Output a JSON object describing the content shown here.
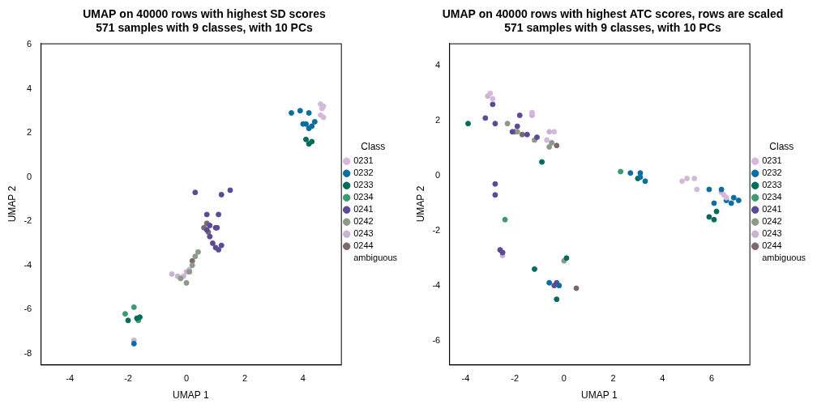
{
  "chart_data": [
    {
      "type": "scatter",
      "title": [
        "UMAP on 40000 rows with highest SD scores",
        "571 samples with 9 classes, with 10 PCs"
      ],
      "x_label": "UMAP 1",
      "y_label": "UMAP 2",
      "legend_title": "Class",
      "legend": "right",
      "xlim": [
        -5,
        5.3
      ],
      "ylim": [
        -8.5,
        6.05
      ],
      "xticks": [
        -4,
        -2,
        0,
        2,
        4
      ],
      "yticks": [
        -8,
        -6,
        -4,
        -2,
        0,
        2,
        4,
        6
      ],
      "grid": false,
      "marker": "circle",
      "series": [
        {
          "name": "0231",
          "color": "#d4b9da",
          "values": [
            [
              4.6,
              3.3
            ],
            [
              4.7,
              3.2
            ],
            [
              4.6,
              2.8
            ],
            [
              4.7,
              2.7
            ],
            [
              4.65,
              3.1
            ]
          ]
        },
        {
          "name": "0232",
          "color": "#0a6ea0",
          "values": [
            [
              3.6,
              2.9
            ],
            [
              3.9,
              3.0
            ],
            [
              4.2,
              2.9
            ],
            [
              4.1,
              2.4
            ],
            [
              4.2,
              2.2
            ],
            [
              4.3,
              2.3
            ],
            [
              4.4,
              2.5
            ],
            [
              4.0,
              2.4
            ],
            [
              -1.8,
              -7.55
            ]
          ]
        },
        {
          "name": "0233",
          "color": "#016c59",
          "values": [
            [
              4.1,
              1.7
            ],
            [
              4.2,
              1.5
            ],
            [
              4.3,
              1.6
            ],
            [
              -2.0,
              -6.5
            ],
            [
              -1.7,
              -6.4
            ],
            [
              -1.6,
              -6.35
            ]
          ]
        },
        {
          "name": "0234",
          "color": "#3e9a6e",
          "values": [
            [
              -2.1,
              -6.2
            ],
            [
              -1.8,
              -5.9
            ],
            [
              -1.65,
              -6.5
            ]
          ]
        },
        {
          "name": "0241",
          "color": "#5b4a96",
          "values": [
            [
              0.3,
              -0.7
            ],
            [
              1.2,
              -0.8
            ],
            [
              1.5,
              -0.6
            ],
            [
              0.7,
              -1.7
            ],
            [
              1.1,
              -1.7
            ],
            [
              0.8,
              -2.2
            ],
            [
              1.0,
              -2.3
            ],
            [
              0.8,
              -2.7
            ],
            [
              0.9,
              -3.0
            ],
            [
              1.0,
              -3.2
            ],
            [
              1.2,
              -3.1
            ],
            [
              1.1,
              -3.3
            ],
            [
              0.7,
              -2.4
            ],
            [
              1.05,
              -2.3
            ]
          ]
        },
        {
          "name": "0242",
          "color": "#8c9a8a",
          "values": [
            [
              0.4,
              -3.4
            ],
            [
              0.3,
              -3.6
            ],
            [
              0.2,
              -4.0
            ],
            [
              0.1,
              -4.3
            ],
            [
              -0.2,
              -4.6
            ],
            [
              0.0,
              -4.8
            ]
          ]
        },
        {
          "name": "0243",
          "color": "#c9b3d3",
          "values": [
            [
              -0.5,
              -4.4
            ],
            [
              -0.3,
              -4.5
            ],
            [
              0.0,
              -4.3
            ],
            [
              0.1,
              -4.2
            ],
            [
              -1.8,
              -7.4
            ],
            [
              -0.1,
              -4.5
            ]
          ]
        },
        {
          "name": "0244",
          "color": "#7a6a6e",
          "values": [
            [
              0.7,
              -2.1
            ],
            [
              0.6,
              -2.3
            ],
            [
              0.75,
              -2.5
            ],
            [
              0.2,
              -3.8
            ]
          ]
        },
        {
          "name": "ambiguous",
          "color": "#ffffff",
          "values": []
        }
      ]
    },
    {
      "type": "scatter",
      "title": [
        "UMAP on 40000 rows with highest ATC scores, rows are scaled",
        "571 samples with 9 classes, with 10 PCs"
      ],
      "x_label": "UMAP 1",
      "y_label": "UMAP 2",
      "legend_title": "Class",
      "legend": "right",
      "xlim": [
        -4.67,
        7.54
      ],
      "ylim": [
        -6.88,
        4.82
      ],
      "xticks": [
        -4,
        -2,
        0,
        2,
        4,
        6
      ],
      "yticks": [
        -6,
        -4,
        -2,
        0,
        2,
        4
      ],
      "grid": false,
      "marker": "circle",
      "series": [
        {
          "name": "0231",
          "color": "#d4b9da",
          "values": [
            [
              -3,
              3
            ],
            [
              -2.9,
              2.8
            ],
            [
              -1.3,
              2.3
            ],
            [
              -0.7,
              1.3
            ],
            [
              -0.4,
              1.6
            ],
            [
              5,
              -0.1
            ],
            [
              5.3,
              -0.1
            ],
            [
              5.4,
              -0.5
            ],
            [
              6.5,
              -0.7
            ],
            [
              6.6,
              -0.8
            ],
            [
              4.8,
              -0.2
            ]
          ]
        },
        {
          "name": "0232",
          "color": "#0a6ea0",
          "values": [
            [
              2.7,
              0.1
            ],
            [
              3.1,
              0.1
            ],
            [
              3.3,
              -0.2
            ],
            [
              3.1,
              -0.05
            ],
            [
              5.9,
              -0.5
            ],
            [
              6.1,
              -1.0
            ],
            [
              6.4,
              -0.5
            ],
            [
              6.6,
              -0.9
            ],
            [
              6.9,
              -0.8
            ],
            [
              7.1,
              -0.9
            ],
            [
              6.8,
              -1.0
            ],
            [
              -0.6,
              -3.9
            ],
            [
              -0.2,
              -4.0
            ]
          ]
        },
        {
          "name": "0233",
          "color": "#016c59",
          "values": [
            [
              -3.9,
              1.9
            ],
            [
              -0.9,
              0.5
            ],
            [
              3.0,
              -0.1
            ],
            [
              5.9,
              -1.5
            ],
            [
              6.1,
              -1.6
            ],
            [
              6.2,
              -1.3
            ],
            [
              -1.2,
              -3.4
            ],
            [
              0.1,
              -3.0
            ],
            [
              -0.3,
              -4.5
            ]
          ]
        },
        {
          "name": "0234",
          "color": "#3e9a6e",
          "values": [
            [
              2.3,
              0.15
            ],
            [
              -2.4,
              -1.6
            ]
          ]
        },
        {
          "name": "0241",
          "color": "#5b4a96",
          "values": [
            [
              -2.9,
              2.6
            ],
            [
              -3.2,
              2.1
            ],
            [
              -2.8,
              1.9
            ],
            [
              -1.8,
              2.2
            ],
            [
              -1.9,
              1.8
            ],
            [
              -2.1,
              1.6
            ],
            [
              -1.5,
              1.5
            ],
            [
              -1.1,
              1.4
            ],
            [
              -2.8,
              -0.3
            ],
            [
              -2.8,
              -0.7
            ],
            [
              -2.6,
              -2.7
            ],
            [
              -2.5,
              -2.8
            ],
            [
              -0.4,
              -4.0
            ],
            [
              -0.3,
              -3.9
            ]
          ]
        },
        {
          "name": "0242",
          "color": "#8c9a8a",
          "values": [
            [
              -2.3,
              1.9
            ],
            [
              -1.9,
              1.6
            ],
            [
              -1.2,
              1.3
            ],
            [
              -0.6,
              1.05
            ],
            [
              -0.5,
              1.2
            ],
            [
              0,
              -3.1
            ]
          ]
        },
        {
          "name": "0243",
          "color": "#c9b3d3",
          "values": [
            [
              -3.1,
              2.9
            ],
            [
              -1.3,
              2.2
            ],
            [
              -0.6,
              1.6
            ],
            [
              6.4,
              -0.6
            ],
            [
              -2.5,
              -2.9
            ]
          ]
        },
        {
          "name": "0244",
          "color": "#7a6a6e",
          "values": [
            [
              -2.0,
              1.6
            ],
            [
              -1.7,
              1.5
            ],
            [
              -0.3,
              1.1
            ],
            [
              0.5,
              -4.1
            ],
            [
              -2.5,
              -2.8
            ]
          ]
        },
        {
          "name": "ambiguous",
          "color": "#ffffff",
          "values": []
        }
      ]
    }
  ]
}
